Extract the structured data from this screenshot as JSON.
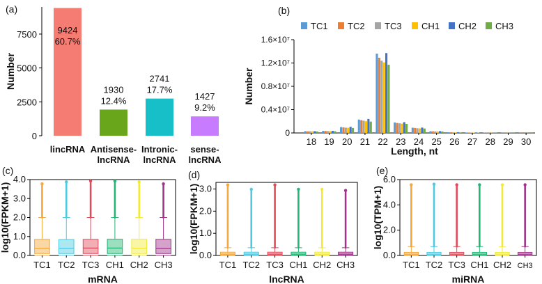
{
  "palette": {
    "TC1": "#5a9bd5",
    "TC2": "#ed7d31",
    "TC3": "#a5a5a5",
    "CH1": "#ffc000",
    "CH2": "#4472c4",
    "CH3": "#70ad47",
    "box_TC1": "#f4a83a",
    "box_TC2": "#4ec9e0",
    "box_TC3": "#e04b5a",
    "box_CH1": "#22b573",
    "box_CH2": "#f2ea3a",
    "box_CH3": "#a0338a"
  },
  "chart_data": [
    {
      "panel": "(a)",
      "type": "bar",
      "ylabel": "Number",
      "xlabel": "",
      "ylim": [
        0,
        9500
      ],
      "yticks": [
        0,
        2500,
        5000,
        7500
      ],
      "categories": [
        "lincRNA",
        "Antisense-\nlncRNA",
        "Intronic-\nlncRNA",
        "sense-\nlncRNA"
      ],
      "values": [
        9424,
        1930,
        2741,
        1427
      ],
      "percent_labels": [
        "60.7%",
        "12.4%",
        "17.7%",
        "9.2%"
      ],
      "colors": [
        "#f47c72",
        "#6aa61c",
        "#17c0c8",
        "#c77cff"
      ]
    },
    {
      "panel": "(b)",
      "type": "bar",
      "ylabel": "Number",
      "xlabel": "Length, nt",
      "ylim": [
        0,
        16000000
      ],
      "yticks": [
        "0",
        "0.4×10⁷",
        "0.8×10⁷",
        "1.2×10⁷",
        "1.6×10⁷"
      ],
      "ytick_values": [
        0,
        4000000,
        8000000,
        12000000,
        16000000
      ],
      "categories": [
        "18",
        "19",
        "20",
        "21",
        "22",
        "23",
        "24",
        "25",
        "26",
        "27",
        "28",
        "29",
        "30"
      ],
      "legend": [
        "TC1",
        "TC2",
        "TC3",
        "CH1",
        "CH2",
        "CH3"
      ],
      "series": [
        {
          "name": "TC1",
          "values": [
            300000,
            350000,
            1000000,
            2300000,
            13600000,
            1800000,
            900000,
            300000,
            120000,
            80000,
            50000,
            40000,
            30000
          ]
        },
        {
          "name": "TC2",
          "values": [
            280000,
            330000,
            950000,
            2200000,
            12900000,
            1700000,
            850000,
            280000,
            110000,
            70000,
            45000,
            35000,
            28000
          ]
        },
        {
          "name": "TC3",
          "values": [
            290000,
            320000,
            900000,
            2100000,
            12400000,
            1650000,
            800000,
            270000,
            100000,
            65000,
            42000,
            33000,
            27000
          ]
        },
        {
          "name": "CH1",
          "values": [
            270000,
            310000,
            880000,
            2000000,
            12100000,
            1600000,
            780000,
            260000,
            95000,
            60000,
            40000,
            30000,
            25000
          ]
        },
        {
          "name": "CH2",
          "values": [
            310000,
            360000,
            1050000,
            2400000,
            13700000,
            1850000,
            920000,
            310000,
            125000,
            82000,
            52000,
            41000,
            31000
          ]
        },
        {
          "name": "CH3",
          "values": [
            260000,
            300000,
            850000,
            1950000,
            11700000,
            1550000,
            760000,
            250000,
            90000,
            58000,
            38000,
            29000,
            24000
          ]
        }
      ]
    },
    {
      "panel": "(c)",
      "type": "box",
      "ylabel": "log10(FPKM+1)",
      "xlabel": "mRNA",
      "ylim": [
        0,
        4.0
      ],
      "yticks": [
        "0.0",
        "1.0",
        "2.0",
        "3.0",
        "4.0"
      ],
      "ytick_values": [
        0,
        1,
        2,
        3,
        4
      ],
      "categories": [
        "TC1",
        "TC2",
        "TC3",
        "CH1",
        "CH2",
        "CH3"
      ],
      "boxes": [
        {
          "name": "TC1",
          "q1": 0.1,
          "median": 0.38,
          "q3": 0.85,
          "whisker_high": 2.0,
          "max_outlier": 3.85
        },
        {
          "name": "TC2",
          "q1": 0.1,
          "median": 0.38,
          "q3": 0.84,
          "whisker_high": 2.0,
          "max_outlier": 3.95
        },
        {
          "name": "TC3",
          "q1": 0.1,
          "median": 0.39,
          "q3": 0.85,
          "whisker_high": 2.0,
          "max_outlier": 4.0
        },
        {
          "name": "CH1",
          "q1": 0.1,
          "median": 0.39,
          "q3": 0.86,
          "whisker_high": 2.0,
          "max_outlier": 4.0
        },
        {
          "name": "CH2",
          "q1": 0.1,
          "median": 0.38,
          "q3": 0.86,
          "whisker_high": 2.0,
          "max_outlier": 3.95
        },
        {
          "name": "CH3",
          "q1": 0.1,
          "median": 0.38,
          "q3": 0.85,
          "whisker_high": 2.0,
          "max_outlier": 3.85
        }
      ]
    },
    {
      "panel": "(d)",
      "type": "box",
      "ylabel": "log10(FPKM+1)",
      "xlabel": "lncRNA",
      "ylim": [
        0,
        3.3
      ],
      "yticks": [
        "0.0",
        "1.0",
        "2.0",
        "3.0"
      ],
      "ytick_values": [
        0,
        1,
        2,
        3
      ],
      "categories": [
        "TC1",
        "TC2",
        "TC3",
        "CH1",
        "CH2",
        "CH3"
      ],
      "boxes": [
        {
          "name": "TC1",
          "q1": 0.02,
          "median": 0.06,
          "q3": 0.15,
          "whisker_high": 0.35,
          "max_outlier": 3.25
        },
        {
          "name": "TC2",
          "q1": 0.02,
          "median": 0.06,
          "q3": 0.15,
          "whisker_high": 0.35,
          "max_outlier": 3.05
        },
        {
          "name": "TC3",
          "q1": 0.02,
          "median": 0.06,
          "q3": 0.15,
          "whisker_high": 0.35,
          "max_outlier": 3.25
        },
        {
          "name": "CH1",
          "q1": 0.02,
          "median": 0.06,
          "q3": 0.15,
          "whisker_high": 0.35,
          "max_outlier": 3.05
        },
        {
          "name": "CH2",
          "q1": 0.02,
          "median": 0.06,
          "q3": 0.15,
          "whisker_high": 0.35,
          "max_outlier": 3.05
        },
        {
          "name": "CH3",
          "q1": 0.02,
          "median": 0.06,
          "q3": 0.15,
          "whisker_high": 0.35,
          "max_outlier": 3.0
        }
      ]
    },
    {
      "panel": "(e)",
      "type": "box",
      "ylabel": "log10(TPM+1)",
      "xlabel": "miRNA",
      "ylim": [
        0,
        6.0
      ],
      "yticks": [
        "0.0",
        "2.0",
        "4.0",
        "6.0"
      ],
      "ytick_values": [
        0,
        2,
        4,
        6
      ],
      "categories": [
        "TC1",
        "TC2",
        "TC3",
        "CH1",
        "CH2",
        "CH3"
      ],
      "boxes": [
        {
          "name": "TC1",
          "q1": 0.03,
          "median": 0.1,
          "q3": 0.25,
          "whisker_high": 0.7,
          "max_outlier": 5.7
        },
        {
          "name": "TC2",
          "q1": 0.03,
          "median": 0.1,
          "q3": 0.25,
          "whisker_high": 0.7,
          "max_outlier": 5.75
        },
        {
          "name": "TC3",
          "q1": 0.03,
          "median": 0.1,
          "q3": 0.25,
          "whisker_high": 0.7,
          "max_outlier": 5.7
        },
        {
          "name": "CH1",
          "q1": 0.03,
          "median": 0.1,
          "q3": 0.25,
          "whisker_high": 0.7,
          "max_outlier": 5.7
        },
        {
          "name": "CH2",
          "q1": 0.03,
          "median": 0.1,
          "q3": 0.25,
          "whisker_high": 0.7,
          "max_outlier": 5.7
        },
        {
          "name": "CH3",
          "q1": 0.03,
          "median": 0.1,
          "q3": 0.25,
          "whisker_high": 0.7,
          "max_outlier": 5.7
        }
      ]
    }
  ]
}
